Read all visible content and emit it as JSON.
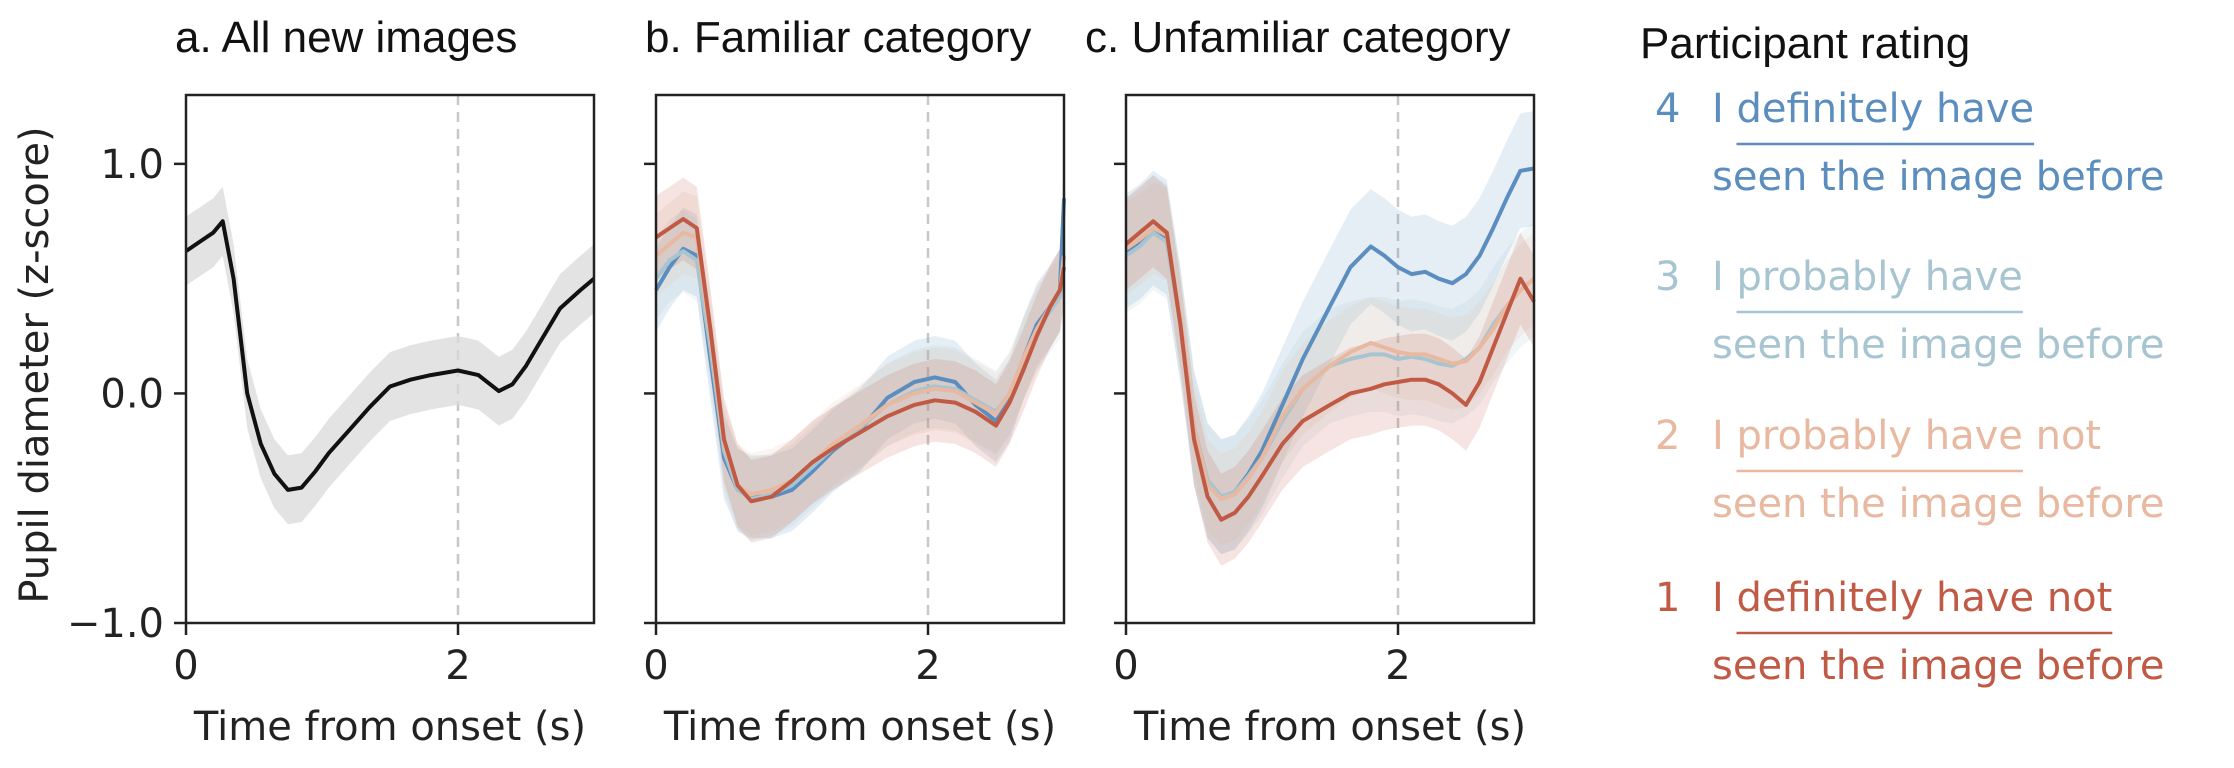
{
  "chart_data": [
    {
      "type": "line",
      "title": "a.  All new images",
      "xlabel": "Time from onset (s)",
      "ylabel": "Pupil diameter (z-score)",
      "xlim": [
        0,
        3
      ],
      "ylim": [
        -1.0,
        1.3
      ],
      "xticks": [
        0,
        2
      ],
      "xtick_labels": [
        "0",
        "2"
      ],
      "yticks": [
        -1.0,
        0.0,
        1.0
      ],
      "ytick_labels": [
        "−1.0",
        "0.0",
        "1.0"
      ],
      "vline_x": 2,
      "x": [
        0,
        0.1,
        0.2,
        0.27,
        0.35,
        0.45,
        0.55,
        0.65,
        0.75,
        0.85,
        0.95,
        1.05,
        1.2,
        1.35,
        1.5,
        1.65,
        1.8,
        2.0,
        2.15,
        2.3,
        2.4,
        2.5,
        2.6,
        2.75,
        2.9,
        3.0
      ],
      "series": [
        {
          "color": "#111111",
          "values": [
            0.62,
            0.66,
            0.7,
            0.75,
            0.5,
            0.0,
            -0.22,
            -0.35,
            -0.42,
            -0.41,
            -0.34,
            -0.26,
            -0.16,
            -0.06,
            0.03,
            0.06,
            0.08,
            0.1,
            0.08,
            0.01,
            0.04,
            0.12,
            0.22,
            0.37,
            0.45,
            0.5
          ],
          "band": 0.15
        }
      ]
    },
    {
      "type": "line",
      "title": "b. Familiar category",
      "xlabel": "Time from onset (s)",
      "xlim": [
        0,
        3
      ],
      "ylim": [
        -1.0,
        1.3
      ],
      "xticks": [
        0,
        2
      ],
      "xtick_labels": [
        "0",
        "2"
      ],
      "vline_x": 2,
      "x": [
        0,
        0.1,
        0.2,
        0.3,
        0.4,
        0.5,
        0.6,
        0.7,
        0.85,
        1.0,
        1.15,
        1.3,
        1.5,
        1.7,
        1.9,
        2.05,
        2.2,
        2.35,
        2.5,
        2.6,
        2.7,
        2.8,
        2.9,
        2.97,
        3.0
      ],
      "series": [
        {
          "name": "4",
          "color": "#5b8dbf",
          "values": [
            0.45,
            0.55,
            0.63,
            0.6,
            0.15,
            -0.28,
            -0.42,
            -0.45,
            -0.45,
            -0.42,
            -0.34,
            -0.25,
            -0.16,
            -0.02,
            0.05,
            0.07,
            0.05,
            -0.05,
            -0.12,
            -0.03,
            0.15,
            0.3,
            0.38,
            0.45,
            0.85
          ],
          "band": 0.18
        },
        {
          "name": "3",
          "color": "#a7c5d0",
          "values": [
            0.5,
            0.58,
            0.62,
            0.58,
            0.2,
            -0.25,
            -0.42,
            -0.46,
            -0.44,
            -0.4,
            -0.32,
            -0.24,
            -0.15,
            -0.05,
            0.01,
            0.03,
            0.02,
            -0.03,
            -0.08,
            0.0,
            0.15,
            0.28,
            0.36,
            0.42,
            0.6
          ],
          "band": 0.18
        },
        {
          "name": "2",
          "color": "#e8b9a0",
          "values": [
            0.6,
            0.65,
            0.7,
            0.68,
            0.25,
            -0.22,
            -0.4,
            -0.44,
            -0.42,
            -0.38,
            -0.3,
            -0.22,
            -0.14,
            -0.05,
            0.0,
            0.02,
            0.01,
            -0.04,
            -0.09,
            0.0,
            0.15,
            0.28,
            0.38,
            0.45,
            0.6
          ],
          "band": 0.18
        },
        {
          "name": "1",
          "color": "#c05a45",
          "values": [
            0.68,
            0.72,
            0.76,
            0.72,
            0.28,
            -0.2,
            -0.4,
            -0.47,
            -0.45,
            -0.38,
            -0.3,
            -0.24,
            -0.17,
            -0.1,
            -0.05,
            -0.03,
            -0.04,
            -0.08,
            -0.14,
            -0.04,
            0.1,
            0.25,
            0.38,
            0.45,
            0.55
          ],
          "band": 0.18
        }
      ]
    },
    {
      "type": "line",
      "title": "c. Unfamiliar category",
      "xlabel": "Time from onset (s)",
      "xlim": [
        0,
        3
      ],
      "ylim": [
        -1.0,
        1.3
      ],
      "xticks": [
        0,
        2
      ],
      "xtick_labels": [
        "0",
        "2"
      ],
      "vline_x": 2,
      "x": [
        0,
        0.1,
        0.2,
        0.3,
        0.4,
        0.5,
        0.6,
        0.7,
        0.8,
        0.9,
        1.0,
        1.15,
        1.3,
        1.5,
        1.65,
        1.8,
        1.9,
        2.0,
        2.1,
        2.2,
        2.3,
        2.4,
        2.5,
        2.6,
        2.7,
        2.8,
        2.9,
        3.0
      ],
      "series": [
        {
          "name": "4",
          "color": "#5b8dbf",
          "values": [
            0.62,
            0.66,
            0.72,
            0.68,
            0.3,
            -0.15,
            -0.38,
            -0.45,
            -0.43,
            -0.35,
            -0.25,
            -0.05,
            0.15,
            0.38,
            0.55,
            0.64,
            0.6,
            0.55,
            0.52,
            0.53,
            0.5,
            0.48,
            0.52,
            0.6,
            0.72,
            0.85,
            0.97,
            0.98
          ],
          "band": 0.25
        },
        {
          "name": "3",
          "color": "#a7c5d0",
          "values": [
            0.6,
            0.64,
            0.7,
            0.66,
            0.3,
            -0.15,
            -0.38,
            -0.45,
            -0.43,
            -0.36,
            -0.28,
            -0.12,
            0.02,
            0.12,
            0.15,
            0.17,
            0.17,
            0.15,
            0.16,
            0.15,
            0.13,
            0.12,
            0.15,
            0.2,
            0.3,
            0.38,
            0.45,
            0.5
          ],
          "band": 0.25
        },
        {
          "name": "2",
          "color": "#e8b9a0",
          "values": [
            0.63,
            0.67,
            0.72,
            0.69,
            0.32,
            -0.15,
            -0.4,
            -0.46,
            -0.44,
            -0.37,
            -0.28,
            -0.1,
            0.02,
            0.12,
            0.18,
            0.22,
            0.2,
            0.18,
            0.17,
            0.17,
            0.15,
            0.13,
            0.14,
            0.2,
            0.28,
            0.38,
            0.45,
            0.5
          ],
          "band": 0.2
        },
        {
          "name": "1",
          "color": "#c05a45",
          "values": [
            0.65,
            0.7,
            0.75,
            0.7,
            0.3,
            -0.2,
            -0.45,
            -0.55,
            -0.52,
            -0.45,
            -0.36,
            -0.22,
            -0.12,
            -0.05,
            0.0,
            0.02,
            0.04,
            0.05,
            0.06,
            0.06,
            0.04,
            0.0,
            -0.05,
            0.05,
            0.2,
            0.35,
            0.5,
            0.4
          ],
          "band": 0.2
        }
      ]
    }
  ],
  "legend": {
    "title": "Participant rating",
    "items": [
      {
        "num": "4",
        "line1a": "I ",
        "line1u": "definitely have",
        "line1b": "",
        "line2": "seen the image before",
        "color": "#5b8dbf"
      },
      {
        "num": "3",
        "line1a": "I ",
        "line1u": "probably have",
        "line1b": "",
        "line2": "seen the image before",
        "color": "#a7c5d0"
      },
      {
        "num": "2",
        "line1a": "I ",
        "line1u": "probably have",
        "line1b": " not",
        "line2": "seen the image before",
        "color": "#e8b9a0"
      },
      {
        "num": "1",
        "line1a": "I ",
        "line1u": "definitely have not",
        "line1b": "",
        "line2": "seen the image before",
        "color": "#c05a45"
      }
    ]
  }
}
